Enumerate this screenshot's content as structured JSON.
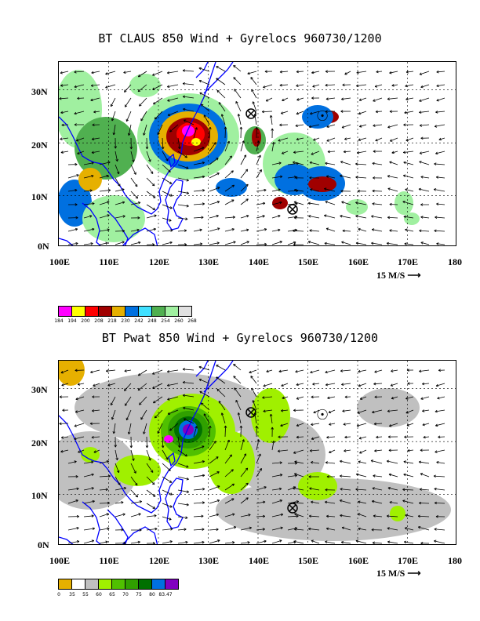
{
  "panel1": {
    "title": "BT CLAUS 850 Wind + Gyrelocs 960730/1200",
    "y_labels": [
      "30N",
      "20N",
      "10N",
      "0N"
    ],
    "x_labels": [
      "100E",
      "110E",
      "120E",
      "130E",
      "140E",
      "150E",
      "160E",
      "170E",
      "180"
    ],
    "speed_label": "15 M/S",
    "colorbar": {
      "colors": [
        "#ff00ff",
        "#ffff00",
        "#ff0000",
        "#a00000",
        "#e6b000",
        "#0070e0",
        "#40e0ff",
        "#50b050",
        "#a0f0a0",
        "#e0e0e0"
      ],
      "ticks": [
        "184",
        "194",
        "200",
        "208",
        "218",
        "230",
        "242",
        "248",
        "254",
        "260",
        "268"
      ]
    }
  },
  "panel2": {
    "title": "BT Pwat 850 Wind + Gyrelocs 960730/1200",
    "y_labels": [
      "30N",
      "20N",
      "10N",
      "0N"
    ],
    "x_labels": [
      "100E",
      "110E",
      "120E",
      "130E",
      "140E",
      "150E",
      "160E",
      "170E",
      "180"
    ],
    "speed_label": "15 M/S",
    "colorbar": {
      "colors": [
        "#e6b000",
        "#ffffff",
        "#c0c0c0",
        "#a0f000",
        "#50c000",
        "#30a000",
        "#007000",
        "#0070e0",
        "#8000c0"
      ],
      "ticks": [
        "0",
        "35",
        "55",
        "60",
        "65",
        "70",
        "75",
        "80",
        "83.47"
      ]
    }
  },
  "colors": {
    "coast": "#0000ff",
    "arrow": "#000000",
    "grid": "#000000"
  }
}
